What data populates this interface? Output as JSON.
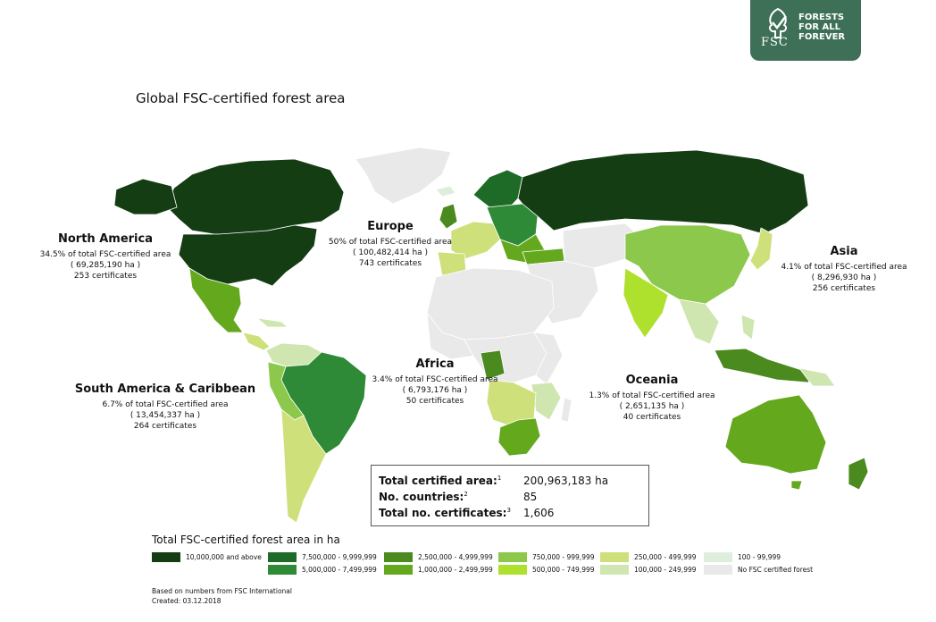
{
  "logo": {
    "brand": "FSC",
    "tagline": [
      "FORESTS",
      "FOR ALL",
      "FOREVER"
    ]
  },
  "title": "Global FSC-certified forest area",
  "regions": [
    {
      "name": "North America",
      "share": "34.5% of total FSC-certified area",
      "area": "( 69,285,190 ha )",
      "certificates": "253 certificates"
    },
    {
      "name": "Europe",
      "share": "50% of total FSC-certified area",
      "area": "( 100,482,414 ha )",
      "certificates": "743 certificates"
    },
    {
      "name": "Asia",
      "share": "4.1% of total FSC-certified area",
      "area": "( 8,296,930 ha )",
      "certificates": "256 certificates"
    },
    {
      "name": "South America & Caribbean",
      "share": "6.7% of total FSC-certified area",
      "area": "( 13,454,337 ha )",
      "certificates": "264 certificates"
    },
    {
      "name": "Africa",
      "share": "3.4% of total FSC-certified area",
      "area": "( 6,793,176 ha )",
      "certificates": "50 certificates"
    },
    {
      "name": "Oceania",
      "share": "1.3% of total FSC-certified area",
      "area": "( 2,651,135 ha )",
      "certificates": "40 certificates"
    }
  ],
  "summary": [
    {
      "label": "Total certified area:",
      "note": "1",
      "value": "200,963,183 ha"
    },
    {
      "label": "No. countries:",
      "note": "2",
      "value": "85"
    },
    {
      "label": "Total no. certificates:",
      "note": "3",
      "value": "1,606"
    }
  ],
  "legend": {
    "title": "Total FSC-certified forest area in ha",
    "classes": [
      {
        "label": "10,000,000 and above",
        "color": "#143d14"
      },
      {
        "label": "7,500,000 - 9,999,999",
        "color": "#1d6b26"
      },
      {
        "label": "5,000,000 - 7,499,999",
        "color": "#2e8a36"
      },
      {
        "label": "2,500,000 - 4,999,999",
        "color": "#4a8a1e"
      },
      {
        "label": "1,000,000 - 2,499,999",
        "color": "#64a81e"
      },
      {
        "label": "750,000 - 999,999",
        "color": "#8cc84b"
      },
      {
        "label": "500,000 - 749,999",
        "color": "#aee02e"
      },
      {
        "label": "250,000 - 499,999",
        "color": "#cde07a"
      },
      {
        "label": "100,000 - 249,999",
        "color": "#cfe6b0"
      },
      {
        "label": "100 - 99,999",
        "color": "#deeedd"
      },
      {
        "label": "No FSC certified forest",
        "color": "#e9e9e9"
      }
    ]
  },
  "footer": {
    "source": "Based on numbers from FSC International",
    "created": "Created: 03.12.2018"
  }
}
